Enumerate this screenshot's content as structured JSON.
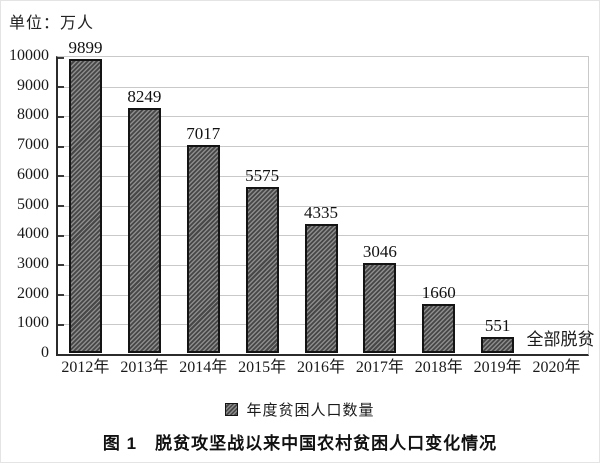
{
  "unit_label": "单位：万人",
  "caption": "图 1　脱贫攻坚战以来中国农村贫困人口变化情况",
  "colors": {
    "axis": "#2b2b2b",
    "grid": "#c9c9c9",
    "bar_border": "#141414",
    "bar_fill_light": "#8c8c8c",
    "bar_fill_dark": "#474747",
    "text": "#1a1a1a"
  },
  "chart_data": {
    "type": "bar",
    "title": "脱贫攻坚战以来中国农村贫困人口变化情况",
    "unit": "万人",
    "categories": [
      "2012年",
      "2013年",
      "2014年",
      "2015年",
      "2016年",
      "2017年",
      "2018年",
      "2019年",
      "2020年"
    ],
    "values": [
      9899,
      8249,
      7017,
      5575,
      4335,
      3046,
      1660,
      551,
      null
    ],
    "annotations": [
      {
        "category": "2020年",
        "text": "全部脱贫"
      }
    ],
    "legend": [
      "年度贫困人口数量"
    ],
    "xlabel": "",
    "ylabel": "",
    "ylim": [
      0,
      10000
    ],
    "ytick_step": 1000,
    "grid": "horizontal",
    "legend_position": "bottom",
    "bar_style": {
      "hatch": "diagonal",
      "fill": "gray",
      "border": "black"
    }
  }
}
